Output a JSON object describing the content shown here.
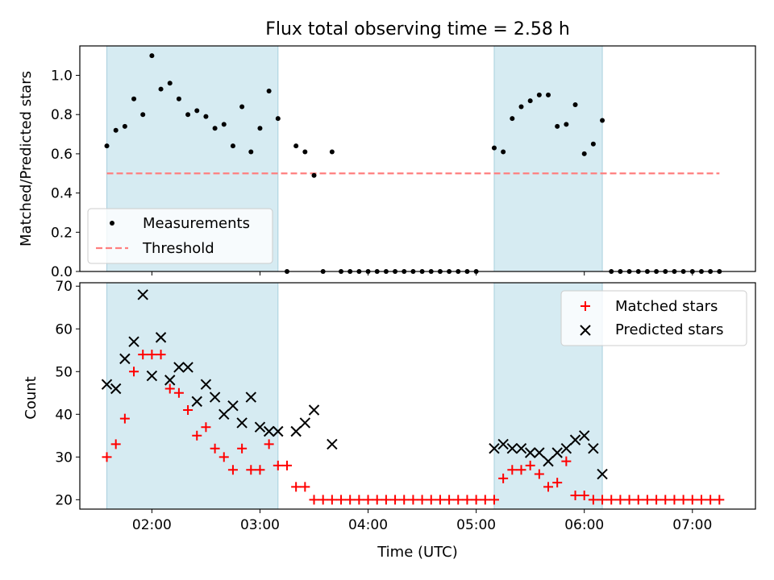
{
  "chart_data": [
    {
      "type": "scatter",
      "title": "Flux total observing time = 2.58 h",
      "xlabel": "",
      "ylabel": "Matched/Predicted stars",
      "ylim": [
        0.0,
        1.15
      ],
      "yticks": [
        "0.0",
        "0.2",
        "0.4",
        "0.6",
        "0.8",
        "1.0"
      ],
      "xlim": [
        "01:20",
        "07:35"
      ],
      "shaded_intervals": [
        [
          "01:35",
          "03:10"
        ],
        [
          "05:10",
          "06:10"
        ]
      ],
      "legend": {
        "placement": "lower left",
        "entries": [
          "Measurements",
          "Threshold"
        ]
      },
      "threshold": {
        "name": "Threshold",
        "value": 0.5,
        "x_start": "01:35",
        "x_end": "07:15",
        "color": "#ff7f7f"
      },
      "series": [
        {
          "name": "Measurements",
          "color": "#000000",
          "x": [
            "01:35",
            "01:40",
            "01:45",
            "01:50",
            "01:55",
            "02:00",
            "02:05",
            "02:10",
            "02:15",
            "02:20",
            "02:25",
            "02:30",
            "02:35",
            "02:40",
            "02:45",
            "02:50",
            "02:55",
            "03:00",
            "03:05",
            "03:10",
            "03:15",
            "03:20",
            "03:25",
            "03:30",
            "03:35",
            "03:40",
            "03:45",
            "03:50",
            "03:55",
            "04:00",
            "04:05",
            "04:10",
            "04:15",
            "04:20",
            "04:25",
            "04:30",
            "04:35",
            "04:40",
            "04:45",
            "04:50",
            "04:55",
            "05:00",
            "05:10",
            "05:15",
            "05:20",
            "05:25",
            "05:30",
            "05:35",
            "05:40",
            "05:45",
            "05:50",
            "05:55",
            "06:00",
            "06:05",
            "06:10",
            "06:15",
            "06:20",
            "06:25",
            "06:30",
            "06:35",
            "06:40",
            "06:45",
            "06:50",
            "06:55",
            "07:00",
            "07:05",
            "07:10",
            "07:15"
          ],
          "y": [
            0.64,
            0.72,
            0.74,
            0.88,
            0.8,
            1.1,
            0.93,
            0.96,
            0.88,
            0.8,
            0.82,
            0.79,
            0.73,
            0.75,
            0.64,
            0.84,
            0.61,
            0.73,
            0.92,
            0.78,
            0.0,
            0.64,
            0.61,
            0.49,
            0.0,
            0.61,
            0.0,
            0.0,
            0.0,
            0.0,
            0.0,
            0.0,
            0.0,
            0.0,
            0.0,
            0.0,
            0.0,
            0.0,
            0.0,
            0.0,
            0.0,
            0.0,
            0.63,
            0.61,
            0.78,
            0.84,
            0.87,
            0.9,
            0.9,
            0.74,
            0.75,
            0.85,
            0.6,
            0.65,
            0.77,
            0.0,
            0.0,
            0.0,
            0.0,
            0.0,
            0.0,
            0.0,
            0.0,
            0.0,
            0.0,
            0.0,
            0.0,
            0.0
          ]
        }
      ]
    },
    {
      "type": "scatter",
      "title": "",
      "xlabel": "Time (UTC)",
      "ylabel": "Count",
      "ylim": [
        17.8,
        70.8
      ],
      "yticks": [
        "20",
        "30",
        "40",
        "50",
        "60",
        "70"
      ],
      "xlim": [
        "01:20",
        "07:35"
      ],
      "xticks": [
        "02:00",
        "03:00",
        "04:00",
        "05:00",
        "06:00",
        "07:00"
      ],
      "shaded_intervals": [
        [
          "01:35",
          "03:10"
        ],
        [
          "05:10",
          "06:10"
        ]
      ],
      "legend": {
        "placement": "upper right",
        "entries": [
          "Matched stars",
          "Predicted stars"
        ]
      },
      "series": [
        {
          "name": "Matched stars",
          "marker": "plus",
          "color": "#ff0000",
          "x": [
            "01:35",
            "01:40",
            "01:45",
            "01:50",
            "01:55",
            "02:00",
            "02:05",
            "02:10",
            "02:15",
            "02:20",
            "02:25",
            "02:30",
            "02:35",
            "02:40",
            "02:45",
            "02:50",
            "02:55",
            "03:00",
            "03:05",
            "03:10",
            "03:15",
            "03:20",
            "03:25",
            "03:30",
            "03:35",
            "03:40",
            "03:45",
            "03:50",
            "03:55",
            "04:00",
            "04:05",
            "04:10",
            "04:15",
            "04:20",
            "04:25",
            "04:30",
            "04:35",
            "04:40",
            "04:45",
            "04:50",
            "04:55",
            "05:00",
            "05:05",
            "05:10",
            "05:15",
            "05:20",
            "05:25",
            "05:30",
            "05:35",
            "05:40",
            "05:45",
            "05:50",
            "05:55",
            "06:00",
            "06:05",
            "06:10",
            "06:15",
            "06:20",
            "06:25",
            "06:30",
            "06:35",
            "06:40",
            "06:45",
            "06:50",
            "06:55",
            "07:00",
            "07:05",
            "07:10",
            "07:15"
          ],
          "y": [
            30,
            33,
            39,
            50,
            54,
            54,
            54,
            46,
            45,
            41,
            35,
            37,
            32,
            30,
            27,
            32,
            27,
            27,
            33,
            28,
            28,
            23,
            23,
            20,
            20,
            20,
            20,
            20,
            20,
            20,
            20,
            20,
            20,
            20,
            20,
            20,
            20,
            20,
            20,
            20,
            20,
            20,
            20,
            20,
            25,
            27,
            27,
            28,
            26,
            23,
            24,
            29,
            21,
            21,
            20,
            20,
            20,
            20,
            20,
            20,
            20,
            20,
            20,
            20,
            20,
            20,
            20,
            20,
            20
          ]
        },
        {
          "name": "Predicted stars",
          "marker": "x",
          "color": "#000000",
          "x": [
            "01:35",
            "01:40",
            "01:45",
            "01:50",
            "01:55",
            "02:00",
            "02:05",
            "02:10",
            "02:15",
            "02:20",
            "02:25",
            "02:30",
            "02:35",
            "02:40",
            "02:45",
            "02:50",
            "02:55",
            "03:00",
            "03:05",
            "03:10",
            "03:20",
            "03:25",
            "03:30",
            "03:40",
            "05:10",
            "05:15",
            "05:20",
            "05:25",
            "05:30",
            "05:35",
            "05:40",
            "05:45",
            "05:50",
            "05:55",
            "06:00",
            "06:05",
            "06:10"
          ],
          "y": [
            47,
            46,
            53,
            57,
            68,
            49,
            58,
            48,
            51,
            51,
            43,
            47,
            44,
            40,
            42,
            38,
            44,
            37,
            36,
            36,
            36,
            38,
            41,
            33,
            32,
            33,
            32,
            32,
            31,
            31,
            29,
            31,
            32,
            34,
            35,
            32,
            26
          ]
        }
      ]
    }
  ]
}
